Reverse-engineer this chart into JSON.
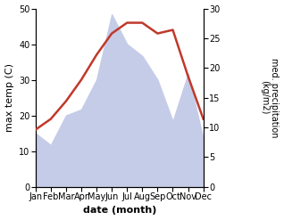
{
  "months": [
    "Jan",
    "Feb",
    "Mar",
    "Apr",
    "May",
    "Jun",
    "Jul",
    "Aug",
    "Sep",
    "Oct",
    "Nov",
    "Dec"
  ],
  "temp": [
    16,
    19,
    24,
    30,
    37,
    43,
    46,
    46,
    43,
    44,
    31,
    19
  ],
  "precip": [
    9,
    7,
    12,
    13,
    18,
    29,
    24,
    22,
    18,
    11,
    19,
    8
  ],
  "temp_ylim": [
    0,
    50
  ],
  "precip_ylim": [
    0,
    30
  ],
  "temp_color": "#c0392b",
  "precip_fill_color": "#c5cce8",
  "xlabel": "date (month)",
  "ylabel_left": "max temp (C)",
  "ylabel_right": "med. precipitation\n(kg/m2)",
  "bg_color": "#ffffff"
}
